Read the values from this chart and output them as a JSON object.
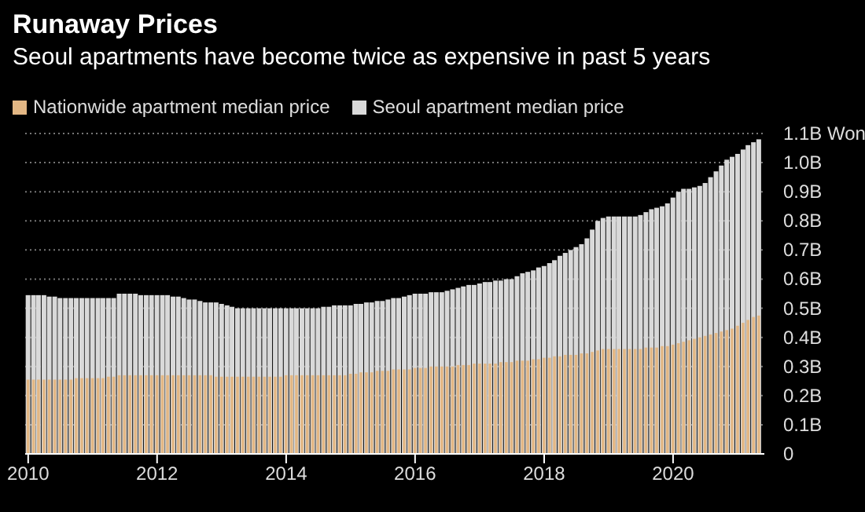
{
  "chart_data": {
    "type": "bar",
    "title": "Runaway Prices",
    "subtitle": "Seoul apartments have become twice as expensive in past 5 years",
    "x": [
      "2010-01",
      "2010-02",
      "2010-03",
      "2010-04",
      "2010-05",
      "2010-06",
      "2010-07",
      "2010-08",
      "2010-09",
      "2010-10",
      "2010-11",
      "2010-12",
      "2011-01",
      "2011-02",
      "2011-03",
      "2011-04",
      "2011-05",
      "2011-06",
      "2011-07",
      "2011-08",
      "2011-09",
      "2011-10",
      "2011-11",
      "2011-12",
      "2012-01",
      "2012-02",
      "2012-03",
      "2012-04",
      "2012-05",
      "2012-06",
      "2012-07",
      "2012-08",
      "2012-09",
      "2012-10",
      "2012-11",
      "2012-12",
      "2013-01",
      "2013-02",
      "2013-03",
      "2013-04",
      "2013-05",
      "2013-06",
      "2013-07",
      "2013-08",
      "2013-09",
      "2013-10",
      "2013-11",
      "2013-12",
      "2014-01",
      "2014-02",
      "2014-03",
      "2014-04",
      "2014-05",
      "2014-06",
      "2014-07",
      "2014-08",
      "2014-09",
      "2014-10",
      "2014-11",
      "2014-12",
      "2015-01",
      "2015-02",
      "2015-03",
      "2015-04",
      "2015-05",
      "2015-06",
      "2015-07",
      "2015-08",
      "2015-09",
      "2015-10",
      "2015-11",
      "2015-12",
      "2016-01",
      "2016-02",
      "2016-03",
      "2016-04",
      "2016-05",
      "2016-06",
      "2016-07",
      "2016-08",
      "2016-09",
      "2016-10",
      "2016-11",
      "2016-12",
      "2017-01",
      "2017-02",
      "2017-03",
      "2017-04",
      "2017-05",
      "2017-06",
      "2017-07",
      "2017-08",
      "2017-09",
      "2017-10",
      "2017-11",
      "2017-12",
      "2018-01",
      "2018-02",
      "2018-03",
      "2018-04",
      "2018-05",
      "2018-06",
      "2018-07",
      "2018-08",
      "2018-09",
      "2018-10",
      "2018-11",
      "2018-12",
      "2019-01",
      "2019-02",
      "2019-03",
      "2019-04",
      "2019-05",
      "2019-06",
      "2019-07",
      "2019-08",
      "2019-09",
      "2019-10",
      "2019-11",
      "2019-12",
      "2020-01",
      "2020-02",
      "2020-03",
      "2020-04",
      "2020-05",
      "2020-06",
      "2020-07",
      "2020-08",
      "2020-09",
      "2020-10",
      "2020-11",
      "2020-12",
      "2021-01",
      "2021-02",
      "2021-03",
      "2021-04",
      "2021-05"
    ],
    "series": [
      {
        "name": "Nationwide apartment median price",
        "color": "#e3b784",
        "values": [
          0.255,
          0.255,
          0.255,
          0.255,
          0.255,
          0.255,
          0.255,
          0.255,
          0.255,
          0.26,
          0.26,
          0.26,
          0.26,
          0.26,
          0.26,
          0.265,
          0.265,
          0.27,
          0.27,
          0.27,
          0.27,
          0.27,
          0.27,
          0.27,
          0.27,
          0.27,
          0.27,
          0.27,
          0.27,
          0.27,
          0.27,
          0.27,
          0.27,
          0.27,
          0.27,
          0.265,
          0.265,
          0.265,
          0.265,
          0.265,
          0.265,
          0.265,
          0.265,
          0.265,
          0.265,
          0.265,
          0.265,
          0.265,
          0.27,
          0.27,
          0.27,
          0.27,
          0.27,
          0.27,
          0.27,
          0.27,
          0.27,
          0.27,
          0.27,
          0.27,
          0.275,
          0.275,
          0.28,
          0.28,
          0.28,
          0.285,
          0.285,
          0.285,
          0.29,
          0.29,
          0.29,
          0.29,
          0.295,
          0.295,
          0.295,
          0.3,
          0.3,
          0.3,
          0.3,
          0.3,
          0.305,
          0.305,
          0.305,
          0.31,
          0.31,
          0.31,
          0.31,
          0.31,
          0.315,
          0.315,
          0.315,
          0.32,
          0.32,
          0.32,
          0.325,
          0.325,
          0.33,
          0.33,
          0.335,
          0.335,
          0.34,
          0.34,
          0.34,
          0.345,
          0.345,
          0.35,
          0.355,
          0.36,
          0.36,
          0.36,
          0.36,
          0.36,
          0.36,
          0.36,
          0.36,
          0.365,
          0.365,
          0.365,
          0.37,
          0.37,
          0.375,
          0.38,
          0.385,
          0.39,
          0.395,
          0.4,
          0.405,
          0.41,
          0.415,
          0.42,
          0.425,
          0.43,
          0.44,
          0.45,
          0.46,
          0.47,
          0.475
        ]
      },
      {
        "name": "Seoul apartment median price",
        "color": "#d9d9d9",
        "values": [
          0.545,
          0.545,
          0.545,
          0.545,
          0.54,
          0.54,
          0.535,
          0.535,
          0.535,
          0.535,
          0.535,
          0.535,
          0.535,
          0.535,
          0.535,
          0.535,
          0.535,
          0.55,
          0.55,
          0.55,
          0.55,
          0.545,
          0.545,
          0.545,
          0.545,
          0.545,
          0.545,
          0.54,
          0.54,
          0.535,
          0.53,
          0.53,
          0.525,
          0.52,
          0.52,
          0.52,
          0.515,
          0.51,
          0.505,
          0.5,
          0.5,
          0.5,
          0.5,
          0.5,
          0.5,
          0.5,
          0.5,
          0.5,
          0.5,
          0.5,
          0.5,
          0.5,
          0.5,
          0.5,
          0.5,
          0.505,
          0.505,
          0.51,
          0.51,
          0.51,
          0.51,
          0.515,
          0.515,
          0.52,
          0.52,
          0.525,
          0.525,
          0.53,
          0.535,
          0.535,
          0.54,
          0.545,
          0.55,
          0.55,
          0.55,
          0.555,
          0.555,
          0.555,
          0.56,
          0.565,
          0.57,
          0.575,
          0.58,
          0.58,
          0.585,
          0.59,
          0.59,
          0.595,
          0.595,
          0.6,
          0.6,
          0.61,
          0.62,
          0.625,
          0.63,
          0.64,
          0.645,
          0.655,
          0.665,
          0.68,
          0.69,
          0.7,
          0.71,
          0.72,
          0.74,
          0.77,
          0.8,
          0.81,
          0.815,
          0.815,
          0.815,
          0.815,
          0.815,
          0.815,
          0.82,
          0.83,
          0.84,
          0.845,
          0.85,
          0.86,
          0.88,
          0.9,
          0.91,
          0.91,
          0.915,
          0.92,
          0.93,
          0.95,
          0.97,
          0.99,
          1.01,
          1.02,
          1.03,
          1.045,
          1.06,
          1.07,
          1.08
        ]
      }
    ],
    "xlim": [
      "2009-12-15",
      "2021-06-01"
    ],
    "xticks": [
      "2010",
      "2012",
      "2014",
      "2016",
      "2018",
      "2020"
    ],
    "ylim": [
      0,
      1.1
    ],
    "yticks": [
      0,
      {
        "value": 0.1,
        "label": "0.1B"
      },
      {
        "value": 0.2,
        "label": "0.2B"
      },
      {
        "value": 0.3,
        "label": "0.3B"
      },
      {
        "value": 0.4,
        "label": "0.4B"
      },
      {
        "value": 0.5,
        "label": "0.5B"
      },
      {
        "value": 0.6,
        "label": "0.6B"
      },
      {
        "value": 0.7,
        "label": "0.7B"
      },
      {
        "value": 0.8,
        "label": "0.8B"
      },
      {
        "value": 0.9,
        "label": "0.9B"
      },
      {
        "value": 1,
        "label": "1.0B"
      },
      {
        "value": 1.1,
        "label": "1.1B Won"
      }
    ],
    "grid": "y",
    "legend": "top left"
  }
}
